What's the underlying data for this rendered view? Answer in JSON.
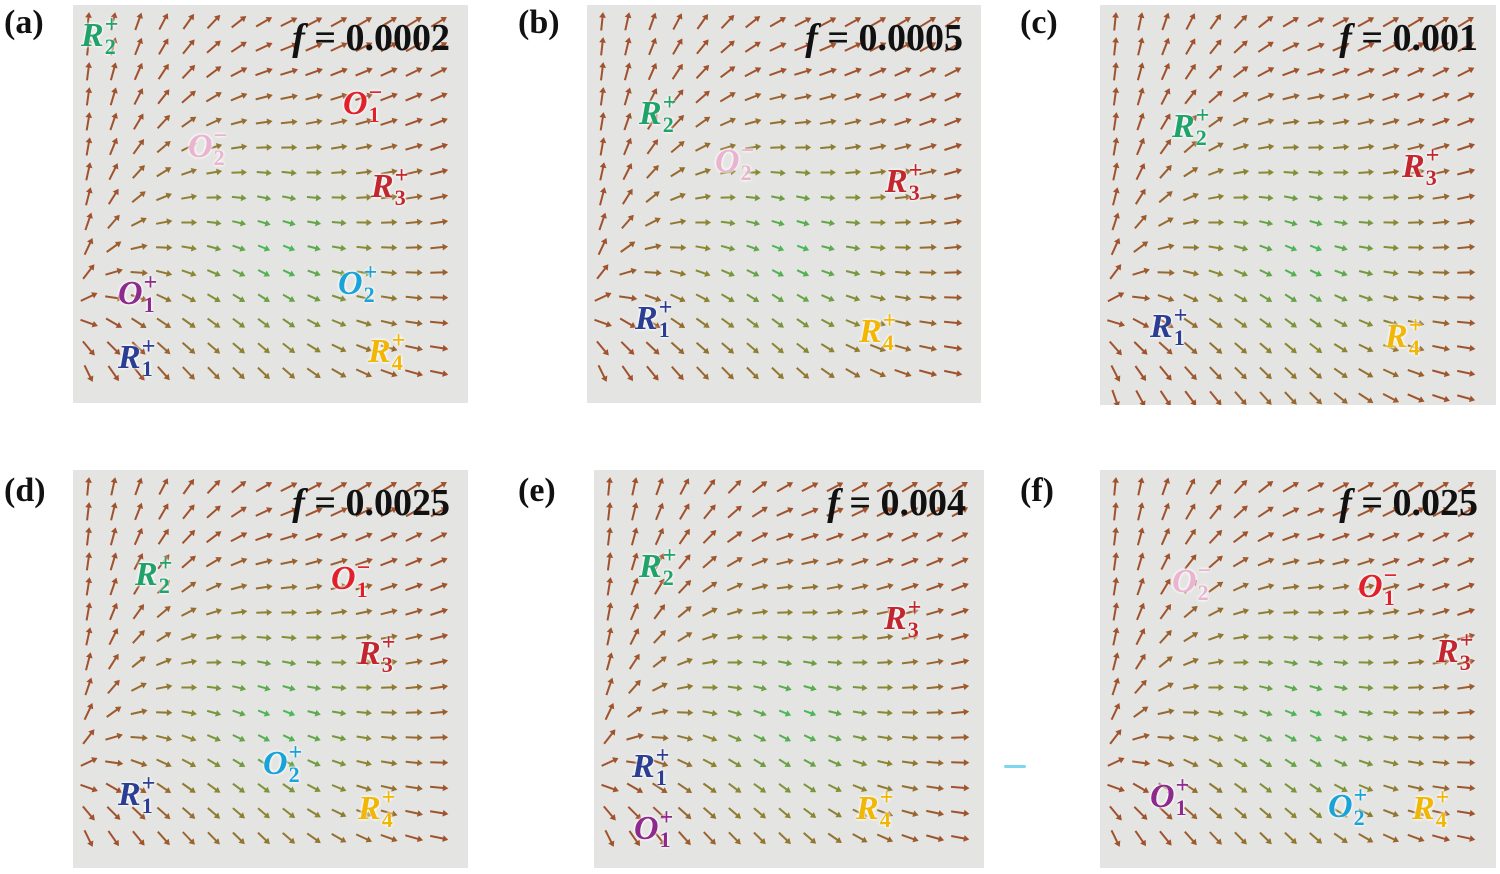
{
  "colors": {
    "R1": "#2b3e94",
    "R2": "#1fa36b",
    "R3": "#c2262e",
    "R4": "#f2b705",
    "O1_plus": "#8e2a8e",
    "O1_minus": "#e0212b",
    "O2_plus": "#1aa3d8",
    "O2_minus": "#eab3cf",
    "arrow_green": "#3fbf5f",
    "arrow_olive": "#8a8a32",
    "arrow_brown": "#a0522d",
    "background": "#e4e4e2"
  },
  "panels": [
    {
      "letter": "(a)",
      "f_symbol": "f",
      "f_eq": " = ",
      "f_value": "0.0002",
      "points": [
        {
          "base": "R",
          "sub": "2",
          "sup": "+",
          "color": "#1fa36b",
          "pos": "p1"
        },
        {
          "base": "O",
          "sub": "1",
          "sup": "−",
          "color": "#e0212b",
          "pos": "p2"
        },
        {
          "base": "O",
          "sub": "2",
          "sup": "−",
          "color": "#eab3cf",
          "pos": "p3"
        },
        {
          "base": "R",
          "sub": "3",
          "sup": "+",
          "color": "#c2262e",
          "pos": "p4"
        },
        {
          "base": "O",
          "sub": "1",
          "sup": "+",
          "color": "#8e2a8e",
          "pos": "p5"
        },
        {
          "base": "O",
          "sub": "2",
          "sup": "+",
          "color": "#1aa3d8",
          "pos": "p6"
        },
        {
          "base": "R",
          "sub": "1",
          "sup": "+",
          "color": "#2b3e94",
          "pos": "p7"
        },
        {
          "base": "R",
          "sub": "4",
          "sup": "+",
          "color": "#f2b705",
          "pos": "p8"
        }
      ]
    },
    {
      "letter": "(b)",
      "f_symbol": "f",
      "f_eq": " = ",
      "f_value": "0.0005",
      "points": [
        {
          "base": "R",
          "sub": "2",
          "sup": "+",
          "color": "#1fa36b",
          "pos": "p1"
        },
        {
          "base": "O",
          "sub": "2",
          "sup": "−",
          "color": "#eab3cf",
          "pos": "p2"
        },
        {
          "base": "R",
          "sub": "3",
          "sup": "+",
          "color": "#c2262e",
          "pos": "p3"
        },
        {
          "base": "R",
          "sub": "1",
          "sup": "+",
          "color": "#2b3e94",
          "pos": "p4"
        },
        {
          "base": "R",
          "sub": "4",
          "sup": "+",
          "color": "#f2b705",
          "pos": "p5"
        }
      ]
    },
    {
      "letter": "(c)",
      "f_symbol": "f",
      "f_eq": " = ",
      "f_value": "0.001",
      "points": [
        {
          "base": "R",
          "sub": "2",
          "sup": "+",
          "color": "#1fa36b",
          "pos": "p1"
        },
        {
          "base": "R",
          "sub": "3",
          "sup": "+",
          "color": "#c2262e",
          "pos": "p2"
        },
        {
          "base": "R",
          "sub": "1",
          "sup": "+",
          "color": "#2b3e94",
          "pos": "p3"
        },
        {
          "base": "R",
          "sub": "4",
          "sup": "+",
          "color": "#f2b705",
          "pos": "p4"
        }
      ]
    },
    {
      "letter": "(d)",
      "f_symbol": "f",
      "f_eq": " = ",
      "f_value": "0.0025",
      "points": [
        {
          "base": "R",
          "sub": "2",
          "sup": "+",
          "color": "#1fa36b",
          "pos": "p1"
        },
        {
          "base": "O",
          "sub": "1",
          "sup": "−",
          "color": "#e0212b",
          "pos": "p2"
        },
        {
          "base": "R",
          "sub": "3",
          "sup": "+",
          "color": "#c2262e",
          "pos": "p3"
        },
        {
          "base": "O",
          "sub": "2",
          "sup": "+",
          "color": "#1aa3d8",
          "pos": "p4"
        },
        {
          "base": "R",
          "sub": "1",
          "sup": "+",
          "color": "#2b3e94",
          "pos": "p5"
        },
        {
          "base": "R",
          "sub": "4",
          "sup": "+",
          "color": "#f2b705",
          "pos": "p6"
        }
      ]
    },
    {
      "letter": "(e)",
      "f_symbol": "f",
      "f_eq": " = ",
      "f_value": "0.004",
      "points": [
        {
          "base": "R",
          "sub": "2",
          "sup": "+",
          "color": "#1fa36b",
          "pos": "p1"
        },
        {
          "base": "R",
          "sub": "3",
          "sup": "+",
          "color": "#c2262e",
          "pos": "p2"
        },
        {
          "base": "R",
          "sub": "1",
          "sup": "+",
          "color": "#2b3e94",
          "pos": "p3"
        },
        {
          "base": "R",
          "sub": "4",
          "sup": "+",
          "color": "#f2b705",
          "pos": "p4"
        },
        {
          "base": "O",
          "sub": "1",
          "sup": "+",
          "color": "#8e2a8e",
          "pos": "p5"
        }
      ]
    },
    {
      "letter": "(f)",
      "f_symbol": "f",
      "f_eq": " = ",
      "f_value": "0.025",
      "points": [
        {
          "base": "O",
          "sub": "2",
          "sup": "−",
          "color": "#eab3cf",
          "pos": "p1"
        },
        {
          "base": "O",
          "sub": "1",
          "sup": "−",
          "color": "#e0212b",
          "pos": "p2"
        },
        {
          "base": "R",
          "sub": "3",
          "sup": "+",
          "color": "#c2262e",
          "pos": "p3"
        },
        {
          "base": "O",
          "sub": "1",
          "sup": "+",
          "color": "#8e2a8e",
          "pos": "p4"
        },
        {
          "base": "O",
          "sub": "2",
          "sup": "+",
          "color": "#1aa3d8",
          "pos": "p5"
        },
        {
          "base": "R",
          "sub": "4",
          "sup": "+",
          "color": "#f2b705",
          "pos": "p6"
        }
      ]
    }
  ]
}
